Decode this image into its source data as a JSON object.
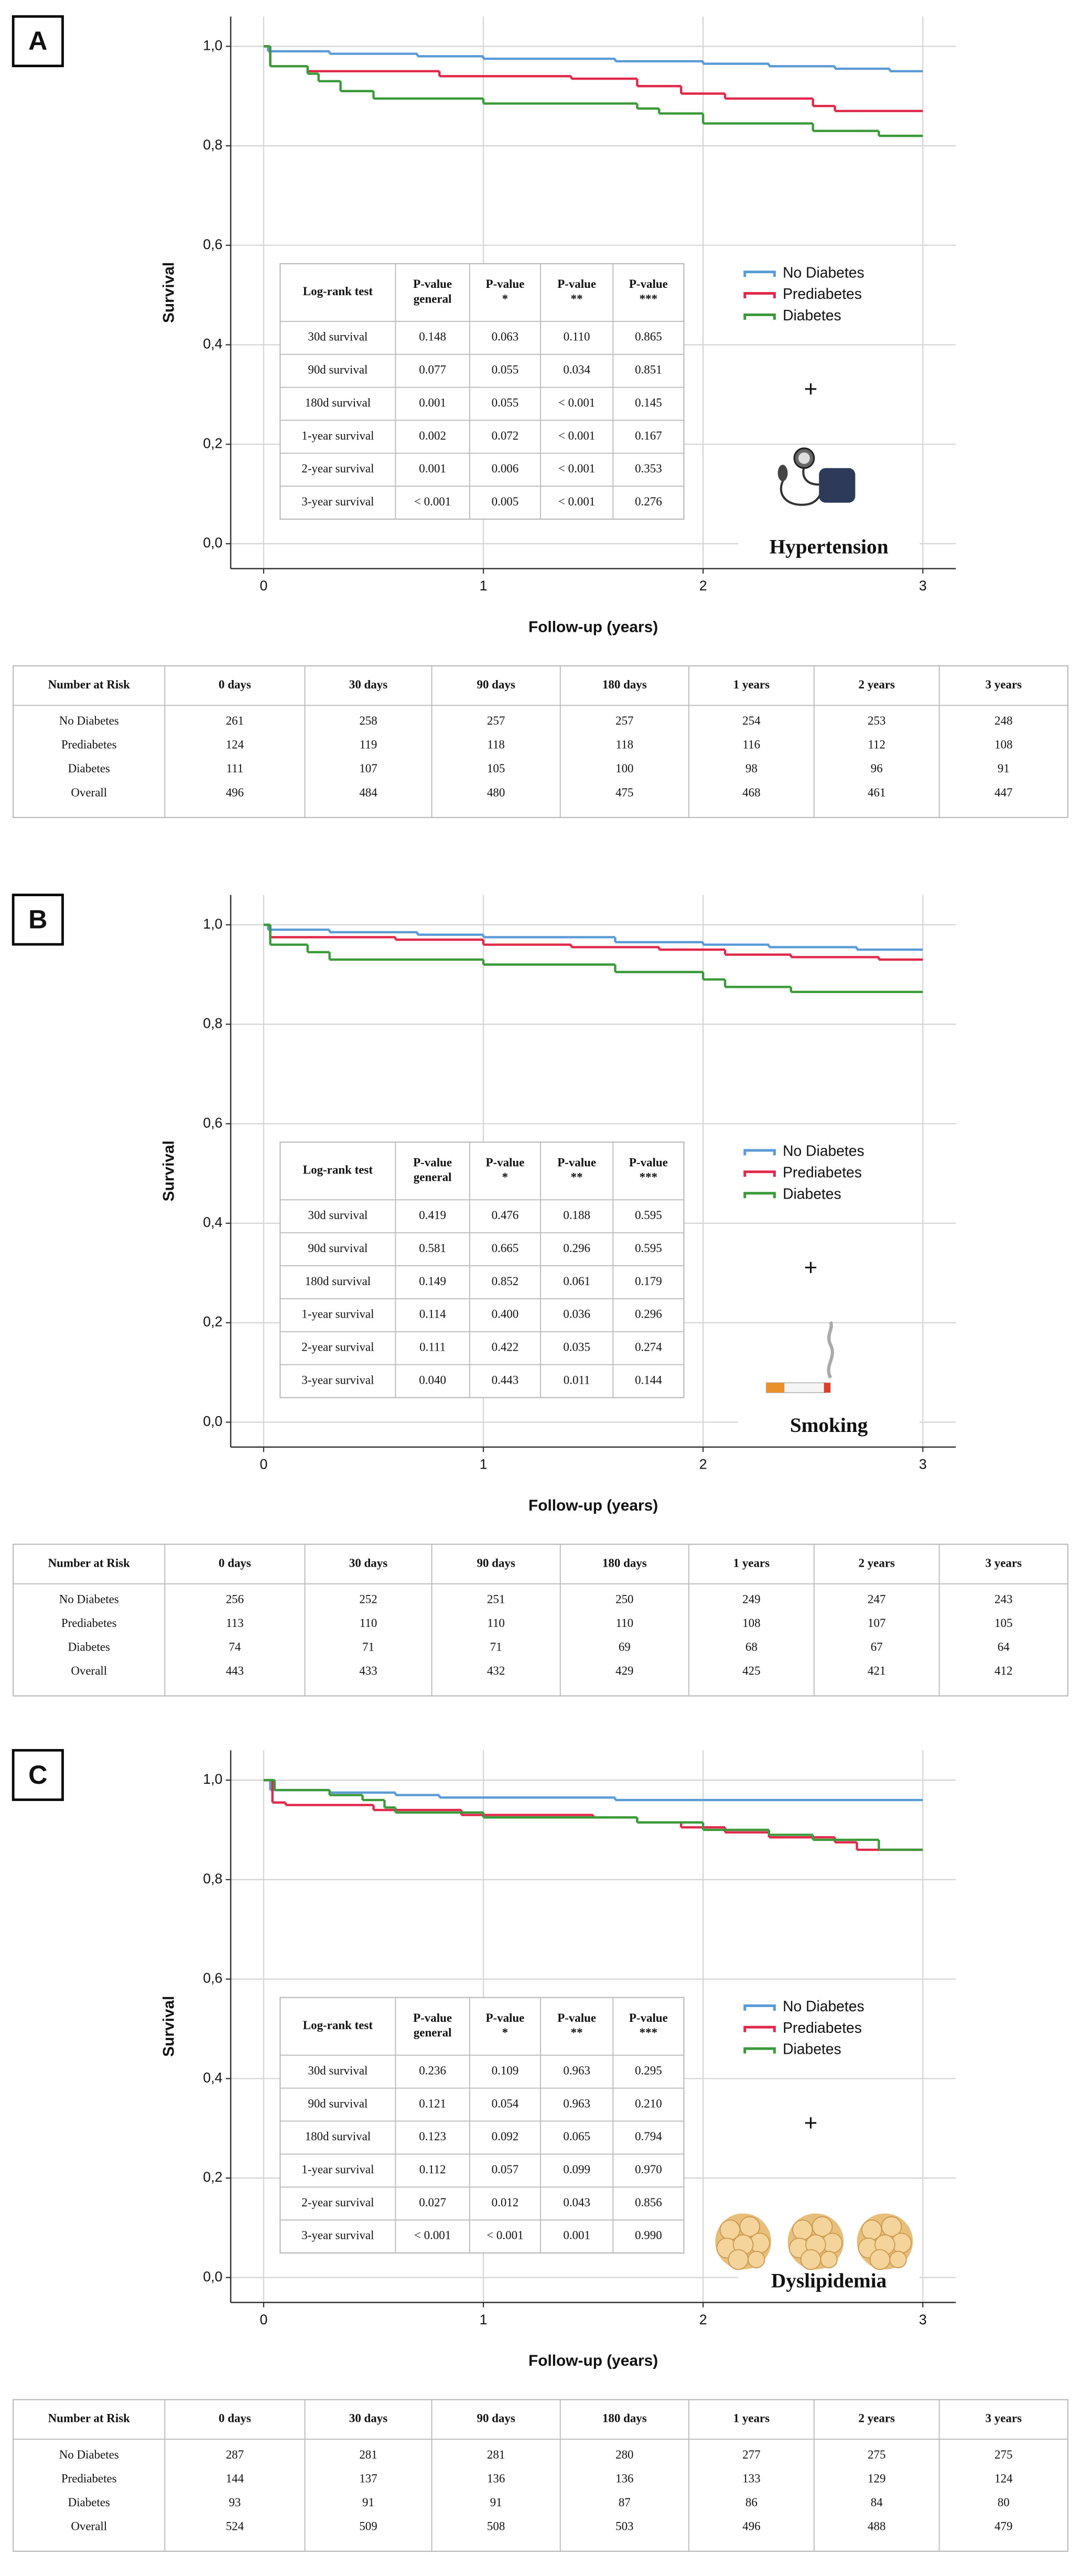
{
  "chart_data": [
    {
      "type": "line",
      "step": true,
      "panel_label": "A",
      "xlabel": "Follow-up (years)",
      "ylabel": "Survival",
      "xlim": [
        -0.15,
        3.15
      ],
      "ylim": [
        -0.05,
        1.06
      ],
      "xticks": [
        0,
        1,
        2,
        3
      ],
      "yticks": [
        {
          "value": 0,
          "label": "0,0"
        },
        {
          "value": 0.2,
          "label": "0,2"
        },
        {
          "value": 0.4,
          "label": "0,4"
        },
        {
          "value": 0.6,
          "label": "0,6"
        },
        {
          "value": 0.8,
          "label": "0,8"
        },
        {
          "value": 1,
          "label": "1,0"
        }
      ],
      "grid": true,
      "legend": "right",
      "series": [
        {
          "name": "No Diabetes",
          "color": "#5b9bd5",
          "x": [
            0,
            0.02,
            0.3,
            0.7,
            1.0,
            1.6,
            2.0,
            2.3,
            2.6,
            2.85,
            3.0
          ],
          "values": [
            1.0,
            0.99,
            0.985,
            0.98,
            0.975,
            0.97,
            0.965,
            0.96,
            0.955,
            0.95,
            0.95
          ]
        },
        {
          "name": "Prediabetes",
          "color": "#e0284a",
          "x": [
            0,
            0.03,
            0.2,
            0.8,
            1.4,
            1.7,
            1.9,
            2.1,
            2.5,
            2.6,
            3.0
          ],
          "values": [
            1.0,
            0.96,
            0.95,
            0.94,
            0.935,
            0.92,
            0.905,
            0.895,
            0.88,
            0.87,
            0.87
          ]
        },
        {
          "name": "Diabetes",
          "color": "#3a9a3a",
          "x": [
            0,
            0.03,
            0.2,
            0.25,
            0.35,
            0.5,
            1.0,
            1.7,
            1.8,
            2.0,
            2.5,
            2.8,
            3.0
          ],
          "values": [
            1.0,
            0.96,
            0.945,
            0.93,
            0.91,
            0.895,
            0.885,
            0.875,
            0.865,
            0.845,
            0.83,
            0.82,
            0.82
          ]
        }
      ],
      "annotation": "+",
      "condition": "Hypertension",
      "logrank_table": {
        "header": [
          [
            "Log-rank test"
          ],
          [
            "P-value",
            "general"
          ],
          [
            "P-value",
            "*"
          ],
          [
            "P-value",
            "**"
          ],
          [
            "P-value",
            "***"
          ]
        ],
        "rows": [
          [
            "30d survival",
            "0.148",
            "0.063",
            "0.110",
            "0.865"
          ],
          [
            "90d survival",
            "0.077",
            "0.055",
            "0.034",
            "0.851"
          ],
          [
            "180d survival",
            "0.001",
            "0.055",
            "< 0.001",
            "0.145"
          ],
          [
            "1-year survival",
            "0.002",
            "0.072",
            "< 0.001",
            "0.167"
          ],
          [
            "2-year survival",
            "0.001",
            "0.006",
            "< 0.001",
            "0.353"
          ],
          [
            "3-year survival",
            "< 0.001",
            "0.005",
            "< 0.001",
            "0.276"
          ]
        ]
      },
      "risk_table": {
        "header": [
          "Number at Risk",
          "0 days",
          "30 days",
          "90 days",
          "180 days",
          "1 years",
          "2 years",
          "3 years"
        ],
        "rows": [
          [
            "No Diabetes",
            261,
            258,
            257,
            257,
            254,
            253,
            248
          ],
          [
            "Prediabetes",
            124,
            119,
            118,
            118,
            116,
            112,
            108
          ],
          [
            "Diabetes",
            111,
            107,
            105,
            100,
            98,
            96,
            91
          ],
          [
            "Overall",
            496,
            484,
            480,
            475,
            468,
            461,
            447
          ]
        ]
      }
    },
    {
      "type": "line",
      "step": true,
      "panel_label": "B",
      "xlabel": "Follow-up (years)",
      "ylabel": "Survival",
      "xlim": [
        -0.15,
        3.15
      ],
      "ylim": [
        -0.05,
        1.06
      ],
      "xticks": [
        0,
        1,
        2,
        3
      ],
      "yticks": [
        {
          "value": 0,
          "label": "0,0"
        },
        {
          "value": 0.2,
          "label": "0,2"
        },
        {
          "value": 0.4,
          "label": "0,4"
        },
        {
          "value": 0.6,
          "label": "0,6"
        },
        {
          "value": 0.8,
          "label": "0,8"
        },
        {
          "value": 1,
          "label": "1,0"
        }
      ],
      "grid": true,
      "legend": "right",
      "series": [
        {
          "name": "No Diabetes",
          "color": "#5b9bd5",
          "x": [
            0,
            0.02,
            0.3,
            0.7,
            1.0,
            1.6,
            2.0,
            2.3,
            2.7,
            3.0
          ],
          "values": [
            1.0,
            0.99,
            0.985,
            0.98,
            0.975,
            0.965,
            0.96,
            0.955,
            0.95,
            0.95
          ]
        },
        {
          "name": "Prediabetes",
          "color": "#e0284a",
          "x": [
            0,
            0.03,
            0.6,
            1.0,
            1.4,
            1.8,
            2.1,
            2.4,
            2.8,
            3.0
          ],
          "values": [
            1.0,
            0.975,
            0.97,
            0.96,
            0.955,
            0.95,
            0.94,
            0.935,
            0.93,
            0.93
          ]
        },
        {
          "name": "Diabetes",
          "color": "#3a9a3a",
          "x": [
            0,
            0.03,
            0.2,
            0.3,
            1.0,
            1.6,
            2.0,
            2.1,
            2.4,
            3.0
          ],
          "values": [
            1.0,
            0.96,
            0.945,
            0.93,
            0.92,
            0.905,
            0.89,
            0.875,
            0.865,
            0.865
          ]
        }
      ],
      "annotation": "+",
      "condition": "Smoking",
      "logrank_table": {
        "header": [
          [
            "Log-rank test"
          ],
          [
            "P-value",
            "general"
          ],
          [
            "P-value",
            "*"
          ],
          [
            "P-value",
            "**"
          ],
          [
            "P-value",
            "***"
          ]
        ],
        "rows": [
          [
            "30d survival",
            "0.419",
            "0.476",
            "0.188",
            "0.595"
          ],
          [
            "90d survival",
            "0.581",
            "0.665",
            "0.296",
            "0.595"
          ],
          [
            "180d survival",
            "0.149",
            "0.852",
            "0.061",
            "0.179"
          ],
          [
            "1-year survival",
            "0.114",
            "0.400",
            "0.036",
            "0.296"
          ],
          [
            "2-year survival",
            "0.111",
            "0.422",
            "0.035",
            "0.274"
          ],
          [
            "3-year survival",
            "0.040",
            "0.443",
            "0.011",
            "0.144"
          ]
        ]
      },
      "risk_table": {
        "header": [
          "Number at Risk",
          "0 days",
          "30 days",
          "90 days",
          "180 days",
          "1 years",
          "2 years",
          "3 years"
        ],
        "rows": [
          [
            "No Diabetes",
            256,
            252,
            251,
            250,
            249,
            247,
            243
          ],
          [
            "Prediabetes",
            113,
            110,
            110,
            110,
            108,
            107,
            105
          ],
          [
            "Diabetes",
            74,
            71,
            71,
            69,
            68,
            67,
            64
          ],
          [
            "Overall",
            443,
            433,
            432,
            429,
            425,
            421,
            412
          ]
        ]
      }
    },
    {
      "type": "line",
      "step": true,
      "panel_label": "C",
      "xlabel": "Follow-up (years)",
      "ylabel": "Survival",
      "xlim": [
        -0.15,
        3.15
      ],
      "ylim": [
        -0.05,
        1.06
      ],
      "xticks": [
        0,
        1,
        2,
        3
      ],
      "yticks": [
        {
          "value": 0,
          "label": "0,0"
        },
        {
          "value": 0.2,
          "label": "0,2"
        },
        {
          "value": 0.4,
          "label": "0,4"
        },
        {
          "value": 0.6,
          "label": "0,6"
        },
        {
          "value": 0.8,
          "label": "0,8"
        },
        {
          "value": 1,
          "label": "1,0"
        }
      ],
      "grid": true,
      "legend": "right",
      "series": [
        {
          "name": "No Diabetes",
          "color": "#5b9bd5",
          "x": [
            0,
            0.03,
            0.3,
            0.6,
            0.8,
            1.6,
            3.0
          ],
          "values": [
            1.0,
            0.98,
            0.975,
            0.97,
            0.965,
            0.96,
            0.96
          ]
        },
        {
          "name": "Prediabetes",
          "color": "#e0284a",
          "x": [
            0,
            0.04,
            0.1,
            0.5,
            0.9,
            1.5,
            1.7,
            1.9,
            2.1,
            2.3,
            2.6,
            2.7,
            3.0
          ],
          "values": [
            1.0,
            0.955,
            0.95,
            0.94,
            0.93,
            0.925,
            0.915,
            0.905,
            0.895,
            0.885,
            0.875,
            0.86,
            0.86
          ]
        },
        {
          "name": "Diabetes",
          "color": "#3a9a3a",
          "x": [
            0,
            0.05,
            0.3,
            0.45,
            0.55,
            0.6,
            1.0,
            1.7,
            2.0,
            2.3,
            2.5,
            2.8,
            3.0
          ],
          "values": [
            1.0,
            0.98,
            0.97,
            0.96,
            0.945,
            0.935,
            0.925,
            0.915,
            0.9,
            0.89,
            0.88,
            0.86,
            0.86
          ]
        }
      ],
      "annotation": "+",
      "condition": "Dyslipidemia",
      "logrank_table": {
        "header": [
          [
            "Log-rank test"
          ],
          [
            "P-value",
            "general"
          ],
          [
            "P-value",
            "*"
          ],
          [
            "P-value",
            "**"
          ],
          [
            "P-value",
            "***"
          ]
        ],
        "rows": [
          [
            "30d survival",
            "0.236",
            "0.109",
            "0.963",
            "0.295"
          ],
          [
            "90d survival",
            "0.121",
            "0.054",
            "0.963",
            "0.210"
          ],
          [
            "180d survival",
            "0.123",
            "0.092",
            "0.065",
            "0.794"
          ],
          [
            "1-year survival",
            "0.112",
            "0.057",
            "0.099",
            "0.970"
          ],
          [
            "2-year survival",
            "0.027",
            "0.012",
            "0.043",
            "0.856"
          ],
          [
            "3-year survival",
            "< 0.001",
            "< 0.001",
            "0.001",
            "0.990"
          ]
        ]
      },
      "risk_table": {
        "header": [
          "Number at Risk",
          "0 days",
          "30 days",
          "90 days",
          "180 days",
          "1 years",
          "2 years",
          "3 years"
        ],
        "rows": [
          [
            "No Diabetes",
            287,
            281,
            281,
            280,
            277,
            275,
            275
          ],
          [
            "Prediabetes",
            144,
            137,
            136,
            136,
            133,
            129,
            124
          ],
          [
            "Diabetes",
            93,
            91,
            91,
            87,
            86,
            84,
            80
          ],
          [
            "Overall",
            524,
            509,
            508,
            503,
            496,
            488,
            479
          ]
        ]
      }
    }
  ]
}
